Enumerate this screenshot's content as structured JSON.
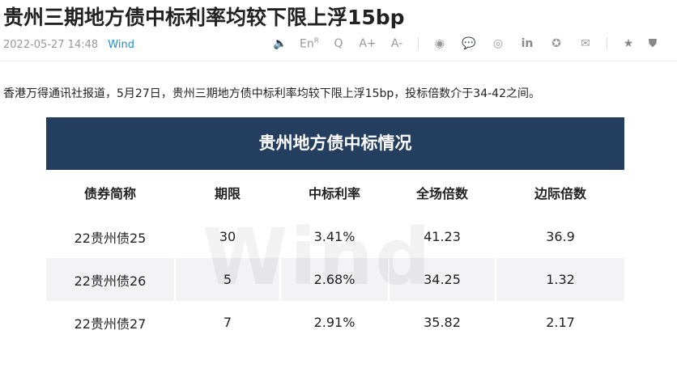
{
  "article": {
    "title": "贵州三期地方债中标利率均较下限上浮15bp",
    "datetime": "2022-05-27 14:48",
    "source": "Wind",
    "lead": "香港万得通讯社报道，5月27日，贵州三期地方债中标利率均较下限上浮15bp，投标倍数介于34-42之间。"
  },
  "toolbar": {
    "speaker": "🔈",
    "en": "En",
    "en_sup": "R",
    "search": "Q",
    "font_up": "A+",
    "font_down": "A-",
    "items": [
      "◉",
      "💬",
      "◎",
      "in",
      "✪",
      "✉"
    ],
    "star": "★",
    "shield": "⛊"
  },
  "table": {
    "title": "贵州地方债中标情况",
    "watermark": "Wind",
    "headers": [
      "债券简称",
      "期限",
      "中标利率",
      "全场倍数",
      "边际倍数"
    ],
    "rows": [
      [
        "22贵州债25",
        "30",
        "3.41%",
        "41.23",
        "36.9"
      ],
      [
        "22贵州债26",
        "5",
        "2.68%",
        "34.25",
        "1.32"
      ],
      [
        "22贵州债27",
        "7",
        "2.91%",
        "35.82",
        "2.17"
      ]
    ]
  }
}
